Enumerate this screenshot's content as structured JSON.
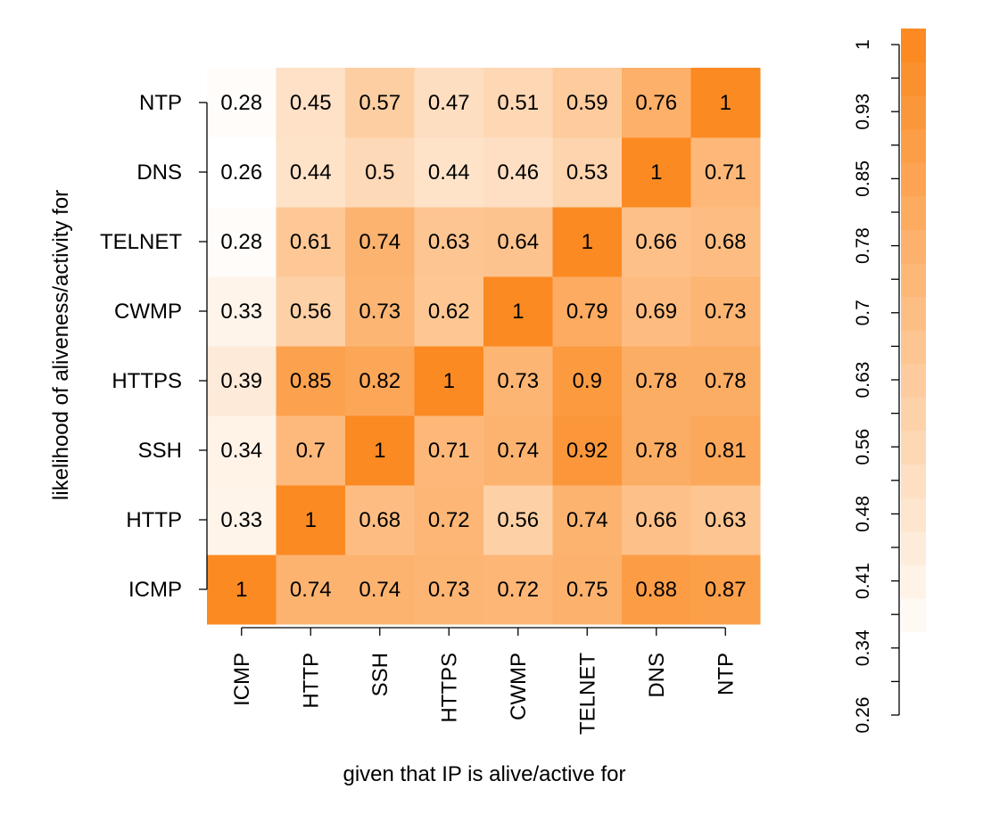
{
  "chart_data": {
    "type": "heatmap",
    "xlabel": "given that IP is alive/active for",
    "ylabel": "likelihood of aliveness/activity for",
    "x_categories": [
      "ICMP",
      "HTTP",
      "SSH",
      "HTTPS",
      "CWMP",
      "TELNET",
      "DNS",
      "NTP"
    ],
    "y_categories": [
      "ICMP",
      "HTTP",
      "SSH",
      "HTTPS",
      "CWMP",
      "TELNET",
      "DNS",
      "NTP"
    ],
    "values": [
      [
        1,
        0.74,
        0.74,
        0.73,
        0.72,
        0.75,
        0.88,
        0.87
      ],
      [
        0.33,
        1,
        0.68,
        0.72,
        0.56,
        0.74,
        0.66,
        0.63
      ],
      [
        0.34,
        0.7,
        1,
        0.71,
        0.74,
        0.92,
        0.78,
        0.81
      ],
      [
        0.39,
        0.85,
        0.82,
        1,
        0.73,
        0.9,
        0.78,
        0.78
      ],
      [
        0.33,
        0.56,
        0.73,
        0.62,
        1,
        0.79,
        0.69,
        0.73
      ],
      [
        0.28,
        0.61,
        0.74,
        0.63,
        0.64,
        1,
        0.66,
        0.68
      ],
      [
        0.26,
        0.44,
        0.5,
        0.44,
        0.46,
        0.53,
        1,
        0.71
      ],
      [
        0.28,
        0.45,
        0.57,
        0.47,
        0.51,
        0.59,
        0.76,
        1
      ]
    ],
    "value_range": [
      0.26,
      1
    ],
    "color_low": "#ffffff",
    "color_high": "#fb8a22",
    "colorbar": {
      "ticks": [
        "0.26",
        "0.34",
        "0.41",
        "0.48",
        "0.56",
        "0.63",
        "0.7",
        "0.78",
        "0.85",
        "0.93",
        "1"
      ],
      "placement": "right"
    }
  }
}
